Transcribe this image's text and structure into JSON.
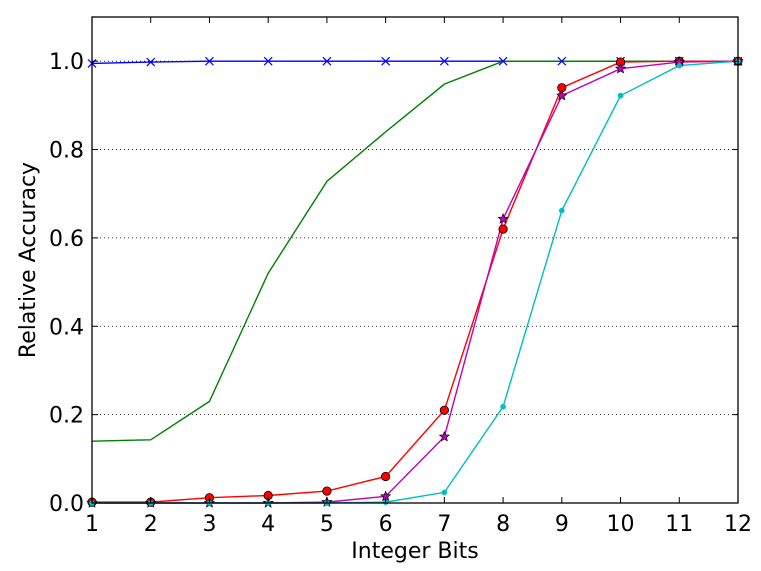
{
  "chart_data": {
    "type": "line",
    "title": "",
    "xlabel": "Integer Bits",
    "ylabel": "Relative Accuracy",
    "xlim": [
      1,
      12
    ],
    "ylim": [
      0.0,
      1.1
    ],
    "x_ticks": [
      "1",
      "2",
      "3",
      "4",
      "5",
      "6",
      "7",
      "8",
      "9",
      "10",
      "11",
      "12"
    ],
    "y_ticks": [
      "0.0",
      "0.2",
      "0.4",
      "0.6",
      "0.8",
      "1.0"
    ],
    "y_tick_values": [
      0.0,
      0.2,
      0.4,
      0.6,
      0.8,
      1.0
    ],
    "grid": "horizontal dotted",
    "x": [
      1,
      2,
      3,
      4,
      5,
      6,
      7,
      8,
      9,
      10,
      11,
      12
    ],
    "series": [
      {
        "color": "#0000ff",
        "marker": "x",
        "values": [
          0.995,
          0.998,
          1.0,
          1.0,
          1.0,
          1.0,
          1.0,
          1.0,
          1.0,
          1.0,
          1.0,
          1.0
        ]
      },
      {
        "color": "#008000",
        "marker": "none",
        "values": [
          0.14,
          0.143,
          0.23,
          0.52,
          0.728,
          0.84,
          0.948,
          1.0,
          1.0,
          1.0,
          1.0,
          1.0
        ]
      },
      {
        "color": "#ff0000",
        "marker": "circle",
        "values": [
          0.002,
          0.002,
          0.012,
          0.017,
          0.027,
          0.06,
          0.21,
          0.62,
          0.94,
          0.998,
          1.0,
          1.0
        ]
      },
      {
        "color": "#bf00bf",
        "marker": "star",
        "values": [
          0.0,
          0.0,
          0.0,
          0.0,
          0.002,
          0.015,
          0.15,
          0.643,
          0.922,
          0.983,
          0.998,
          1.0
        ]
      },
      {
        "color": "#00bfbf",
        "marker": "dot",
        "values": [
          0.0,
          0.0,
          0.0,
          0.0,
          0.0,
          0.002,
          0.024,
          0.218,
          0.662,
          0.922,
          0.99,
          1.0
        ]
      }
    ]
  }
}
